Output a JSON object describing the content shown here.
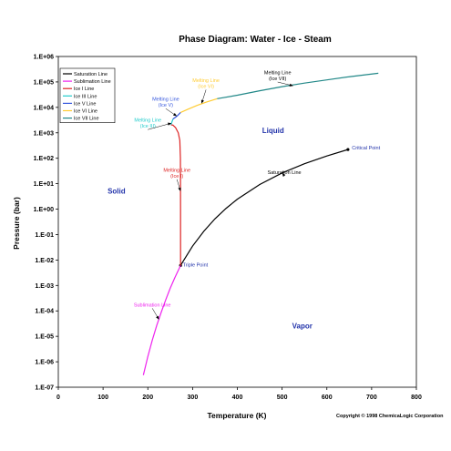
{
  "chart_data": {
    "type": "line",
    "title": "Phase Diagram: Water - Ice - Steam",
    "xlabel": "Temperature (K)",
    "ylabel": "Pressure (bar)",
    "xlim": [
      0,
      800
    ],
    "x_ticks": [
      "0",
      "100",
      "200",
      "300",
      "400",
      "500",
      "600",
      "700",
      "800"
    ],
    "ylim_log10": [
      -7,
      6
    ],
    "y_ticks": [
      "1.E-07",
      "1.E-06",
      "1.E-05",
      "1.E-04",
      "1.E-03",
      "1.E-02",
      "1.E-01",
      "1.E+00",
      "1.E+01",
      "1.E+02",
      "1.E+03",
      "1.E+04",
      "1.E+05",
      "1.E+06"
    ],
    "y_scale": "log",
    "grid": false,
    "legend_position": "top-left",
    "series": [
      {
        "name": "Saturation Line",
        "color": "#000000",
        "marker_ends": true,
        "points": [
          [
            273.16,
            0.00611
          ],
          [
            300,
            0.0354
          ],
          [
            325,
            0.134
          ],
          [
            350,
            0.417
          ],
          [
            375,
            1.08
          ],
          [
            400,
            2.46
          ],
          [
            450,
            9.32
          ],
          [
            500,
            26.4
          ],
          [
            550,
            61.2
          ],
          [
            600,
            123.4
          ],
          [
            647.1,
            220.6
          ]
        ]
      },
      {
        "name": "Sublimation Line",
        "color": "#ee22ee",
        "points": [
          [
            190,
            3e-07
          ],
          [
            200,
            1.6e-06
          ],
          [
            210,
            7.1e-06
          ],
          [
            220,
            2.7e-05
          ],
          [
            230,
            8.91e-05
          ],
          [
            240,
            0.000273
          ],
          [
            250,
            0.000776
          ],
          [
            260,
            0.00196
          ],
          [
            273.16,
            0.00611
          ]
        ]
      },
      {
        "name": "Ice I Line",
        "color": "#dd2222",
        "points": [
          [
            273.16,
            0.00611
          ],
          [
            273.1,
            1
          ],
          [
            272.8,
            100
          ],
          [
            271.5,
            500
          ],
          [
            268,
            1000
          ],
          [
            262,
            1600
          ],
          [
            256,
            2000
          ],
          [
            251.2,
            2090
          ]
        ]
      },
      {
        "name": "Ice III Line",
        "color": "#22cccc",
        "points": [
          [
            251.2,
            2090
          ],
          [
            253,
            2400
          ],
          [
            256.2,
            3500
          ]
        ]
      },
      {
        "name": "Ice V Line",
        "color": "#3355dd",
        "points": [
          [
            256.2,
            3500
          ],
          [
            265,
            4500
          ],
          [
            273.3,
            6300
          ]
        ]
      },
      {
        "name": "Ice VI Line",
        "color": "#ffcc33",
        "points": [
          [
            273.3,
            6300
          ],
          [
            290,
            8500
          ],
          [
            310,
            12000
          ],
          [
            330,
            16000
          ],
          [
            355,
            22000
          ]
        ]
      },
      {
        "name": "Ice VII Line",
        "color": "#228888",
        "points": [
          [
            355,
            22000
          ],
          [
            400,
            30000
          ],
          [
            450,
            45000
          ],
          [
            500,
            65000
          ],
          [
            550,
            90000
          ],
          [
            600,
            120000
          ],
          [
            650,
            160000
          ],
          [
            715,
            220000
          ]
        ]
      }
    ],
    "annotations": [
      {
        "text": "Saturation Line",
        "x": 505,
        "y": 24,
        "color": "#000000",
        "arrow_to": [
          500,
          26.4
        ]
      },
      {
        "text": "Melting Line (Ice I)",
        "x": 265,
        "y": 30,
        "color": "#dd2222",
        "arrow_to": [
          273,
          5
        ]
      },
      {
        "text": "Melting Line (Ice V)",
        "x": 240,
        "y": 18000,
        "color": "#3355dd",
        "arrow_to": [
          265,
          4500
        ]
      },
      {
        "text": "Melting Line (Ice III)",
        "x": 200,
        "y": 2700,
        "color": "#22cccc",
        "arrow_to": [
          253,
          2400
        ]
      },
      {
        "text": "Melting Line (Ice VI)",
        "x": 330,
        "y": 100000,
        "color": "#ffcc33",
        "arrow_to": [
          320,
          14000
        ]
      },
      {
        "text": "Melting Line (Ice VII)",
        "x": 490,
        "y": 200000,
        "color": "#000000",
        "arrow_to": [
          525,
          70000
        ]
      },
      {
        "text": "Sublimation Line",
        "x": 210,
        "y": 0.00015,
        "color": "#ee22ee",
        "arrow_to": [
          225,
          4.5e-05
        ]
      },
      {
        "text": "Triple Point",
        "x": 278,
        "y": 0.0055,
        "color": "#2233aa"
      },
      {
        "text": "Critical Point",
        "x": 656,
        "y": 220,
        "color": "#2233aa"
      }
    ],
    "regions": [
      {
        "text": "Solid",
        "x": 130,
        "y": 4
      },
      {
        "text": "Liquid",
        "x": 480,
        "y": 1000
      },
      {
        "text": "Vapor",
        "x": 545,
        "y": 2e-05
      }
    ],
    "copyright": "Copyright © 1998 ChemicaLogic Corporation"
  }
}
